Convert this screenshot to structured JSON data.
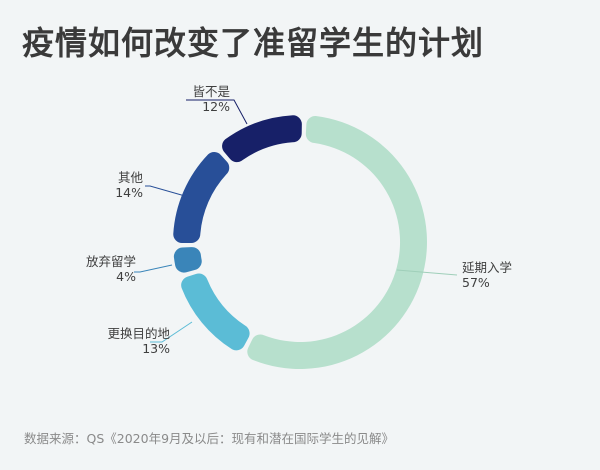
{
  "title": "疫情如何改变了准留学生的计划",
  "source": "数据来源：QS《2020年9月及以后：现有和潜在国际学生的见解》",
  "chart_data": {
    "type": "pie",
    "donut": true,
    "categories": [
      "延期入学",
      "更换目的地",
      "放弃留学",
      "其他",
      "皆不是"
    ],
    "values": [
      57,
      13,
      4,
      14,
      12
    ],
    "value_labels": [
      "57%",
      "13%",
      "4%",
      "14%",
      "12%"
    ],
    "colors": [
      "#b7e0cd",
      "#5bbcd6",
      "#3a85b9",
      "#284f98",
      "#172068"
    ],
    "legend": "none"
  }
}
